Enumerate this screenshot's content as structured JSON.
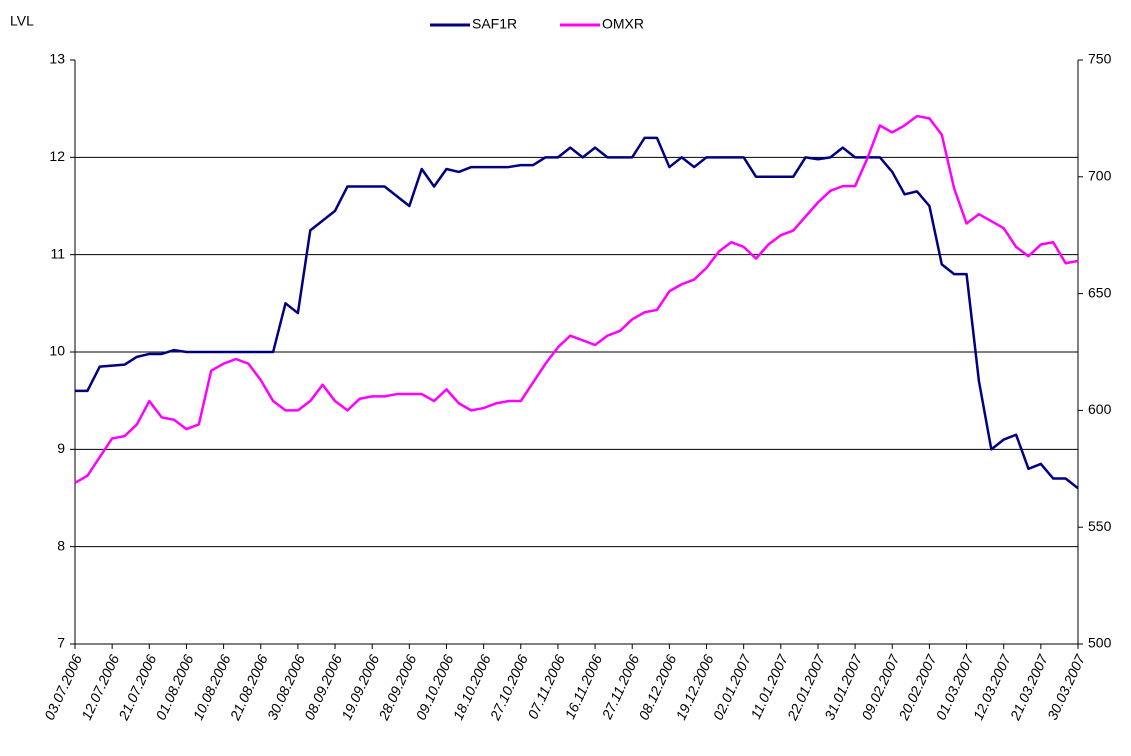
{
  "chart_data": {
    "type": "line",
    "y_label": "LVL",
    "categories": [
      "03.07.2006",
      null,
      null,
      "12.07.2006",
      null,
      null,
      "21.07.2006",
      null,
      null,
      "01.08.2006",
      null,
      null,
      "10.08.2006",
      null,
      null,
      "21.08.2006",
      null,
      null,
      "30.08.2006",
      null,
      null,
      "08.09.2006",
      null,
      null,
      "19.09.2006",
      null,
      null,
      "28.09.2006",
      null,
      null,
      "09.10.2006",
      null,
      null,
      "18.10.2006",
      null,
      null,
      "27.10.2006",
      null,
      null,
      "07.11.2006",
      null,
      null,
      "16.11.2006",
      null,
      null,
      "27.11.2006",
      null,
      null,
      "08.12.2006",
      null,
      null,
      "19.12.2006",
      null,
      null,
      "02.01.2007",
      null,
      null,
      "11.01.2007",
      null,
      null,
      "22.01.2007",
      null,
      null,
      "31.01.2007",
      null,
      null,
      "09.02.2007",
      null,
      null,
      "20.02.2007",
      null,
      null,
      "01.03.2007",
      null,
      null,
      "12.03.2007",
      null,
      null,
      "21.03.2007",
      null,
      null,
      "30.03.2007"
    ],
    "series": [
      {
        "name": "SAF1R",
        "color": "#000080",
        "axis": "y",
        "values": [
          9.6,
          9.6,
          9.85,
          9.86,
          9.87,
          9.95,
          9.98,
          9.98,
          10.02,
          10.0,
          10.0,
          10.0,
          10.0,
          10.0,
          10.0,
          10.0,
          10.0,
          10.5,
          10.4,
          11.25,
          11.35,
          11.45,
          11.7,
          11.7,
          11.7,
          11.7,
          11.6,
          11.5,
          11.88,
          11.7,
          11.88,
          11.85,
          11.9,
          11.9,
          11.9,
          11.9,
          11.92,
          11.92,
          12.0,
          12.0,
          12.1,
          12.0,
          12.1,
          12.0,
          12.0,
          12.0,
          12.2,
          12.2,
          11.9,
          12.0,
          11.9,
          12.0,
          12.0,
          12.0,
          12.0,
          11.8,
          11.8,
          11.8,
          11.8,
          12.0,
          11.98,
          12.0,
          12.1,
          12.0,
          12.0,
          12.0,
          11.85,
          11.62,
          11.65,
          11.5,
          10.9,
          10.8,
          10.8,
          9.7,
          9.0,
          9.1,
          9.15,
          8.8,
          8.85,
          8.7,
          8.7,
          8.6
        ]
      },
      {
        "name": "OMXR",
        "color": "#ff00ff",
        "axis": "y2",
        "values": [
          569,
          572,
          580,
          588,
          589,
          594,
          604,
          597,
          596,
          592,
          594,
          617,
          620,
          622,
          620,
          613,
          604,
          600,
          600,
          604,
          611,
          604,
          600,
          605,
          606,
          606,
          607,
          607,
          607,
          604,
          609,
          603,
          600,
          601,
          603,
          604,
          604,
          612,
          620,
          627,
          632,
          630,
          628,
          632,
          634,
          639,
          642,
          643,
          651,
          654,
          656,
          661,
          668,
          672,
          670,
          665,
          671,
          675,
          677,
          683,
          689,
          694,
          696,
          696,
          708,
          722,
          719,
          722,
          726,
          725,
          718,
          695,
          680,
          684,
          681,
          678,
          670,
          666,
          671,
          672,
          663,
          664
        ]
      }
    ],
    "ylim": [
      7,
      13
    ],
    "yticks": [
      7,
      8,
      9,
      10,
      11,
      12,
      13
    ],
    "y2lim": [
      500,
      750
    ],
    "y2ticks": [
      500,
      550,
      600,
      650,
      700,
      750
    ],
    "grid": true,
    "legend": "top"
  }
}
